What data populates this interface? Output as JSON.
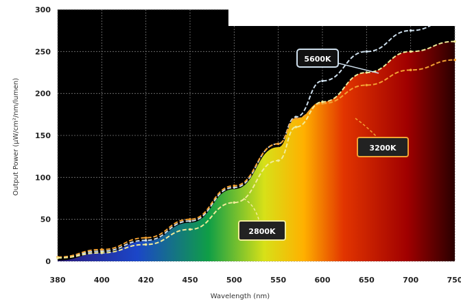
{
  "chart_data": {
    "type": "line",
    "title": "",
    "xlabel": "Wavelength (nm)",
    "ylabel": "Output Power (μW/cm²/nm/lumen)",
    "xlim": [
      380,
      750
    ],
    "ylim": [
      0,
      300
    ],
    "grid": true,
    "x_ticks": [
      380,
      400,
      420,
      450,
      500,
      550,
      600,
      650,
      700,
      750
    ],
    "x_tick_labels": [
      "380",
      "400",
      "420",
      "450",
      "500",
      "550",
      "600",
      "650",
      "700",
      "750"
    ],
    "y_ticks": [
      0,
      50,
      100,
      150,
      200,
      250,
      300
    ],
    "y_tick_labels": [
      "0",
      "50",
      "100",
      "150",
      "200",
      "250",
      "300"
    ],
    "background_spectrum": true,
    "series": [
      {
        "name": "5600K",
        "color": "#cfe0ee",
        "x": [
          380,
          400,
          420,
          450,
          500,
          550,
          570,
          600,
          650,
          700,
          750
        ],
        "y": [
          5,
          12,
          25,
          48,
          88,
          140,
          172,
          215,
          250,
          275,
          290
        ]
      },
      {
        "name": "3200K",
        "color": "#f3a233",
        "x": [
          380,
          400,
          420,
          450,
          500,
          550,
          570,
          600,
          650,
          700,
          750
        ],
        "y": [
          5,
          14,
          28,
          50,
          90,
          140,
          170,
          188,
          210,
          228,
          240
        ]
      },
      {
        "name": "2800K",
        "color": "#f1ec9a",
        "x": [
          380,
          400,
          420,
          450,
          500,
          550,
          570,
          600,
          650,
          700,
          750
        ],
        "y": [
          4,
          10,
          20,
          38,
          70,
          120,
          160,
          190,
          225,
          250,
          262
        ]
      }
    ],
    "annotations": [
      {
        "label": "5600K",
        "series": "5600K"
      },
      {
        "label": "3200K",
        "series": "3200K"
      },
      {
        "label": "2800K",
        "series": "2800K"
      }
    ]
  }
}
